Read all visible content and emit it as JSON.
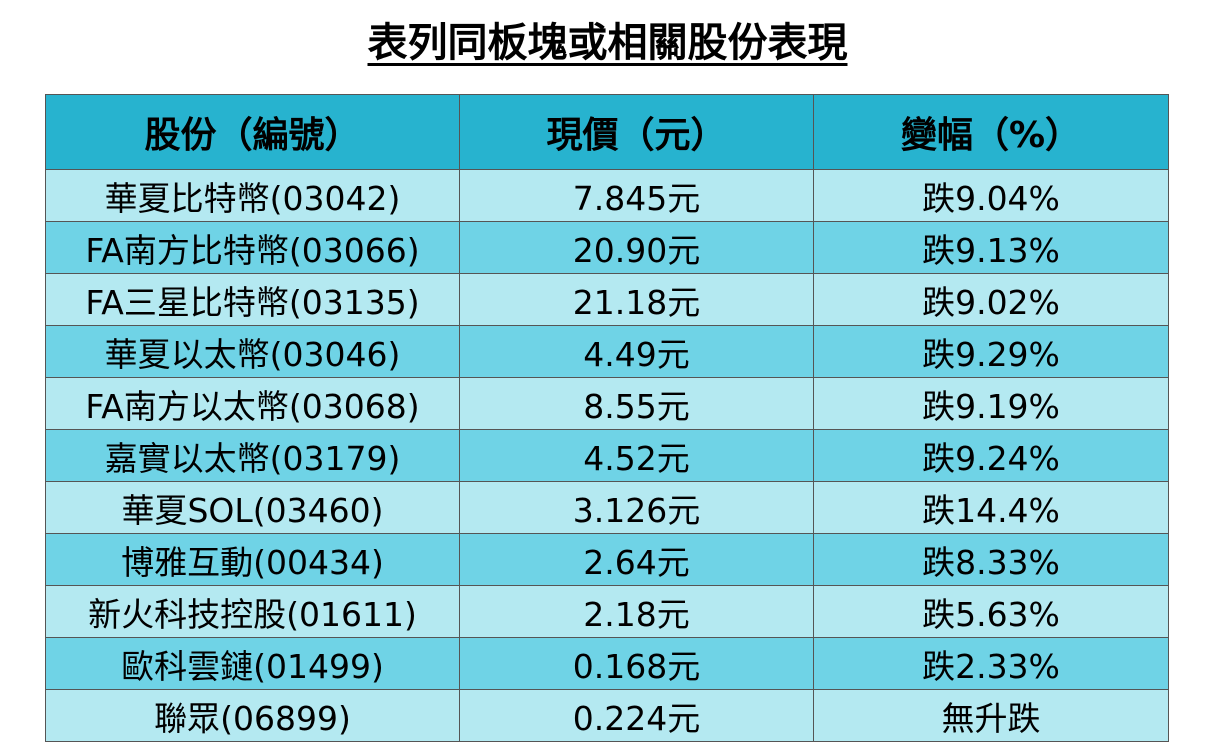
{
  "title": "表列同板塊或相關股份表現",
  "table": {
    "headers": [
      "股份（編號）",
      "現價（元）",
      "變幅（%）"
    ],
    "rows": [
      [
        "華夏比特幣(03042)",
        "7.845元",
        "跌9.04%"
      ],
      [
        "FA南方比特幣(03066)",
        "20.90元",
        "跌9.13%"
      ],
      [
        "FA三星比特幣(03135)",
        "21.18元",
        "跌9.02%"
      ],
      [
        "華夏以太幣(03046)",
        "4.49元",
        "跌9.29%"
      ],
      [
        "FA南方以太幣(03068)",
        "8.55元",
        "跌9.19%"
      ],
      [
        "嘉實以太幣(03179)",
        "4.52元",
        "跌9.24%"
      ],
      [
        "華夏SOL(03460)",
        "3.126元",
        "跌14.4%"
      ],
      [
        "博雅互動(00434)",
        "2.64元",
        "跌8.33%"
      ],
      [
        "新火科技控股(01611)",
        "2.18元",
        "跌5.63%"
      ],
      [
        "歐科雲鏈(01499)",
        "0.168元",
        "跌2.33%"
      ],
      [
        "聯眾(06899)",
        "0.224元",
        "無升跌"
      ]
    ]
  },
  "colors": {
    "header_bg": "#27b3cf",
    "row_light": "#b4e9f1",
    "row_dark": "#6fd3e6"
  }
}
